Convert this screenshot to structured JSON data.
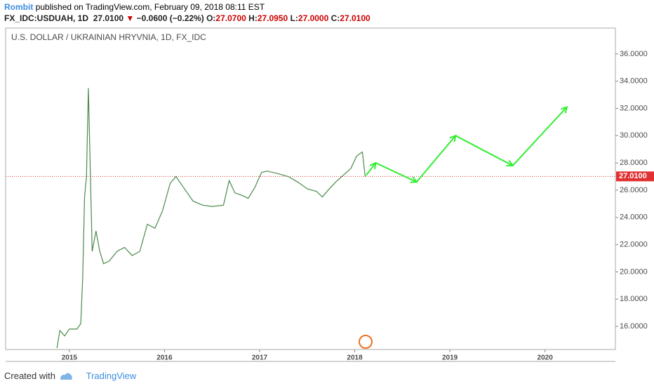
{
  "header": {
    "author": "Rombit",
    "published": "published on TradingView.com, February 09, 2018 08:11 EST",
    "symbol": "FX_IDC:USDUAH, 1D",
    "price": "27.0100",
    "arrow": "▼",
    "change": "−0.0600 (−0.22%)",
    "o_label": "O:",
    "o": "27.0700",
    "h_label": "H:",
    "h": "27.0950",
    "l_label": "L:",
    "l": "27.0000",
    "c_label": "C:",
    "c": "27.0100"
  },
  "footer": {
    "created": "Created with",
    "brand": "TradingView"
  },
  "chart_data": {
    "type": "line",
    "title": "U.S. DOLLAR / UKRAINIAN HRYVNIA, 1D, FX_IDC",
    "xlim": [
      2014.33,
      2020.74
    ],
    "xticks": [
      2015,
      2016,
      2017,
      2018,
      2019,
      2020
    ],
    "ylim": [
      14.3,
      37.9
    ],
    "yticks": [
      {
        "value": 16,
        "label": "16.0000"
      },
      {
        "value": 18,
        "label": "18.0000"
      },
      {
        "value": 20,
        "label": "20.0000"
      },
      {
        "value": 22,
        "label": "22.0000"
      },
      {
        "value": 24,
        "label": "24.0000"
      },
      {
        "value": 26,
        "label": "26.0000"
      },
      {
        "value": 28,
        "label": "28.0000"
      },
      {
        "value": 30,
        "label": "30.0000"
      },
      {
        "value": 32,
        "label": "32.0000"
      },
      {
        "value": 34,
        "label": "34.0000"
      },
      {
        "value": 36,
        "label": "36.0000"
      }
    ],
    "last_price": {
      "value": 27.01,
      "label": "27.0100"
    },
    "series": [
      {
        "color": "#4a8a4a",
        "x": [
          2014.87,
          2014.9,
          2014.95,
          2015.0,
          2015.08,
          2015.12,
          2015.14,
          2015.16,
          2015.18,
          2015.2,
          2015.22,
          2015.24,
          2015.28,
          2015.32,
          2015.36,
          2015.42,
          2015.5,
          2015.58,
          2015.66,
          2015.74,
          2015.82,
          2015.9,
          2015.98,
          2016.06,
          2016.12,
          2016.2,
          2016.3,
          2016.4,
          2016.5,
          2016.62,
          2016.68,
          2016.74,
          2016.82,
          2016.88,
          2016.95,
          2017.02,
          2017.08,
          2017.2,
          2017.3,
          2017.4,
          2017.5,
          2017.6,
          2017.66,
          2017.72,
          2017.8,
          2017.88,
          2017.96,
          2018.02,
          2018.08,
          2018.11
        ],
        "values": [
          14.4,
          15.7,
          15.3,
          15.8,
          15.8,
          16.2,
          19.5,
          25.5,
          27,
          33.5,
          27.5,
          21.5,
          23,
          21.5,
          20.6,
          20.8,
          21.5,
          21.8,
          21.2,
          21.5,
          23.5,
          23.2,
          24.5,
          26.5,
          27.0,
          26.2,
          25.2,
          24.9,
          24.8,
          24.9,
          26.7,
          25.8,
          25.6,
          25.4,
          26.2,
          27.3,
          27.4,
          27.2,
          27.0,
          26.6,
          26.1,
          25.9,
          25.5,
          26.0,
          26.6,
          27.1,
          27.6,
          28.5,
          28.8,
          27.0
        ]
      },
      {
        "color": "#33ee33",
        "x": [
          2018.12,
          2018.22,
          2018.65,
          2019.06,
          2019.66,
          2020.23
        ],
        "values": [
          27.1,
          28.0,
          26.6,
          30.0,
          27.8,
          32.1
        ]
      }
    ]
  }
}
